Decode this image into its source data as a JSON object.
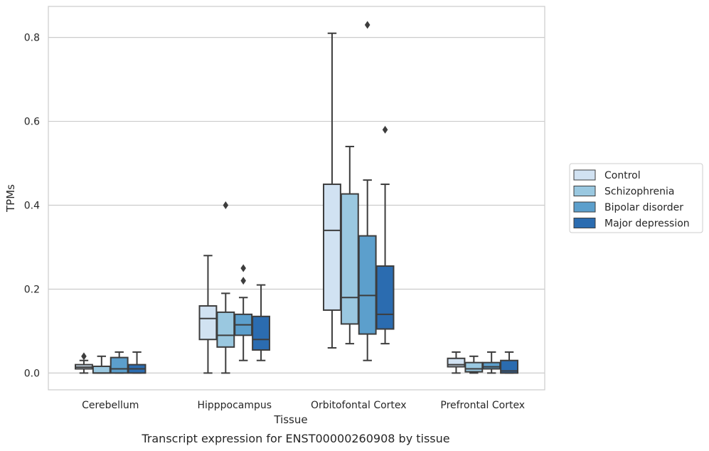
{
  "caption": "Transcript expression for ENST00000260908 by tissue",
  "chart_data": {
    "type": "boxplot",
    "xlabel": "Tissue",
    "ylabel": "TPMs",
    "ylim": [
      -0.04,
      0.874
    ],
    "yticks": [
      "0.0",
      "0.2",
      "0.4",
      "0.6",
      "0.8"
    ],
    "grid": true,
    "legend_position": "right",
    "categories": [
      "Cerebellum",
      "Hipppocampus",
      "Orbitofontal Cortex",
      "Prefrontal Cortex"
    ],
    "series": [
      {
        "name": "Control",
        "color": "#d1e2f2",
        "boxes": [
          {
            "whisker_low": 0.0,
            "q1": 0.01,
            "median": 0.014,
            "q3": 0.02,
            "whisker_high": 0.03,
            "outliers": [
              0.04
            ]
          },
          {
            "whisker_low": 0.0,
            "q1": 0.08,
            "median": 0.13,
            "q3": 0.16,
            "whisker_high": 0.28,
            "outliers": []
          },
          {
            "whisker_low": 0.06,
            "q1": 0.15,
            "median": 0.34,
            "q3": 0.45,
            "whisker_high": 0.81,
            "outliers": []
          },
          {
            "whisker_low": 0.0,
            "q1": 0.015,
            "median": 0.02,
            "q3": 0.035,
            "whisker_high": 0.05,
            "outliers": []
          }
        ]
      },
      {
        "name": "Schizophrenia",
        "color": "#9ac8e0",
        "boxes": [
          {
            "whisker_low": 0.0,
            "q1": 0.0,
            "median": 0.0,
            "q3": 0.016,
            "whisker_high": 0.04,
            "outliers": []
          },
          {
            "whisker_low": 0.0,
            "q1": 0.062,
            "median": 0.09,
            "q3": 0.145,
            "whisker_high": 0.19,
            "outliers": [
              0.4
            ]
          },
          {
            "whisker_low": 0.07,
            "q1": 0.117,
            "median": 0.18,
            "q3": 0.427,
            "whisker_high": 0.54,
            "outliers": []
          },
          {
            "whisker_low": 0.0,
            "q1": 0.003,
            "median": 0.01,
            "q3": 0.025,
            "whisker_high": 0.04,
            "outliers": []
          }
        ]
      },
      {
        "name": "Bipolar disorder",
        "color": "#5c9fcc",
        "boxes": [
          {
            "whisker_low": 0.0,
            "q1": 0.0,
            "median": 0.01,
            "q3": 0.037,
            "whisker_high": 0.05,
            "outliers": []
          },
          {
            "whisker_low": 0.03,
            "q1": 0.09,
            "median": 0.115,
            "q3": 0.14,
            "whisker_high": 0.18,
            "outliers": [
              0.22,
              0.25
            ]
          },
          {
            "whisker_low": 0.03,
            "q1": 0.093,
            "median": 0.185,
            "q3": 0.327,
            "whisker_high": 0.46,
            "outliers": [
              0.83
            ]
          },
          {
            "whisker_low": 0.0,
            "q1": 0.01,
            "median": 0.015,
            "q3": 0.025,
            "whisker_high": 0.05,
            "outliers": []
          }
        ]
      },
      {
        "name": "Major depression",
        "color": "#2b6cb0",
        "boxes": [
          {
            "whisker_low": 0.0,
            "q1": 0.0,
            "median": 0.01,
            "q3": 0.02,
            "whisker_high": 0.05,
            "outliers": []
          },
          {
            "whisker_low": 0.03,
            "q1": 0.055,
            "median": 0.08,
            "q3": 0.135,
            "whisker_high": 0.21,
            "outliers": []
          },
          {
            "whisker_low": 0.07,
            "q1": 0.105,
            "median": 0.14,
            "q3": 0.255,
            "whisker_high": 0.45,
            "outliers": [
              0.58
            ]
          },
          {
            "whisker_low": 0.0,
            "q1": 0.0,
            "median": 0.005,
            "q3": 0.03,
            "whisker_high": 0.05,
            "outliers": []
          }
        ]
      }
    ]
  }
}
